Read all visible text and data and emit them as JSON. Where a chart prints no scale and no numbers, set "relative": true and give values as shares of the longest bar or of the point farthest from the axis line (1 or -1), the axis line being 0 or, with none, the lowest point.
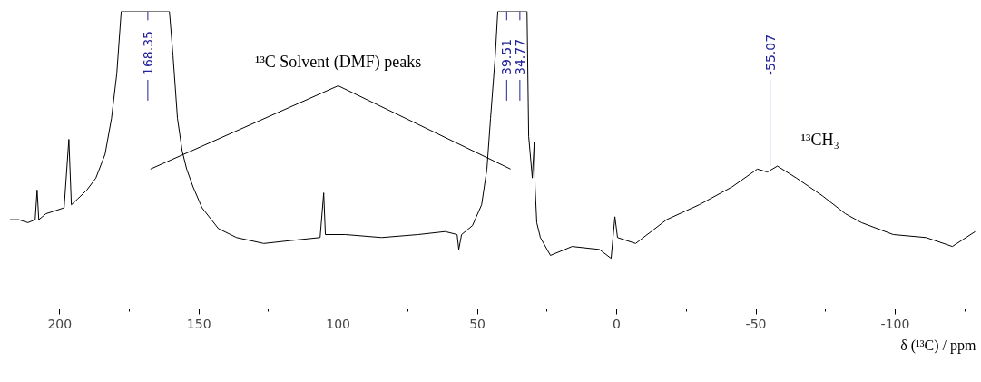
{
  "chart_data": {
    "type": "line",
    "relative": true,
    "xlabel": "δ (¹³C) / ppm",
    "x": [
      217.9,
      214.7,
      211.4,
      208.8,
      208.1,
      207.5,
      204.9,
      201.6,
      198.4,
      196.7,
      195.8,
      193.5,
      190.2,
      187.0,
      183.7,
      181.4,
      179.5,
      177.9,
      160.6,
      159.3,
      157.7,
      156.0,
      154.4,
      152.1,
      148.9,
      143.0,
      136.5,
      126.7,
      116.9,
      106.5,
      105.2,
      104.6,
      97.4,
      84.4,
      71.3,
      61.6,
      57.3,
      56.7,
      55.7,
      51.8,
      48.5,
      46.6,
      45.3,
      43.6,
      42.7,
      32.2,
      31.6,
      30.3,
      29.6,
      29.3,
      28.7,
      27.4,
      23.8,
      16.0,
      6.2,
      2.0,
      0.65,
      -0.3,
      -6.8,
      -17.9,
      -29.6,
      -41.4,
      -50.5,
      -54.1,
      -57.7,
      -64.5,
      -73.9,
      -82.1,
      -87.9,
      -99.3,
      -111.1,
      -120.5,
      -128.7
    ],
    "series": [
      {
        "color": "#000000",
        "values": [
          0.3,
          0.3,
          0.29,
          0.3,
          0.4,
          0.3,
          0.32,
          0.33,
          0.34,
          0.57,
          0.35,
          0.37,
          0.4,
          0.44,
          0.52,
          0.64,
          0.79,
          1.0,
          1.0,
          0.85,
          0.64,
          0.53,
          0.47,
          0.41,
          0.34,
          0.27,
          0.24,
          0.22,
          0.23,
          0.24,
          0.39,
          0.25,
          0.25,
          0.24,
          0.25,
          0.26,
          0.25,
          0.2,
          0.25,
          0.28,
          0.35,
          0.47,
          0.64,
          0.85,
          1.0,
          1.0,
          0.58,
          0.44,
          0.56,
          0.41,
          0.29,
          0.24,
          0.18,
          0.21,
          0.2,
          0.17,
          0.31,
          0.24,
          0.22,
          0.3,
          0.35,
          0.41,
          0.47,
          0.46,
          0.48,
          0.44,
          0.38,
          0.32,
          0.29,
          0.25,
          0.24,
          0.21,
          0.26
        ]
      }
    ],
    "xlim": [
      218,
      -129
    ],
    "xticks": [
      200,
      {
        "value": 175,
        "label": null
      },
      150,
      {
        "value": 125,
        "label": null
      },
      100,
      {
        "value": 75,
        "label": null
      },
      50,
      {
        "value": 25,
        "label": null
      },
      0,
      {
        "value": -25,
        "label": null
      },
      -50,
      {
        "value": -75,
        "label": null
      },
      -100,
      {
        "value": -125,
        "label": null
      }
    ],
    "annotations": [
      {
        "text": "168.35",
        "x": 168.35,
        "y": 1.0
      },
      {
        "text": "39.51",
        "x": 39.51,
        "y": 1.0
      },
      {
        "text": "34.77",
        "x": 34.77,
        "y": 1.0
      },
      {
        "text": "-55.07",
        "x": -55.07,
        "y": 0.465
      },
      "¹³C Solvent (DMF) peaks",
      "¹³CH₃"
    ],
    "grid": false,
    "marker": "none",
    "line_style": "solid"
  }
}
